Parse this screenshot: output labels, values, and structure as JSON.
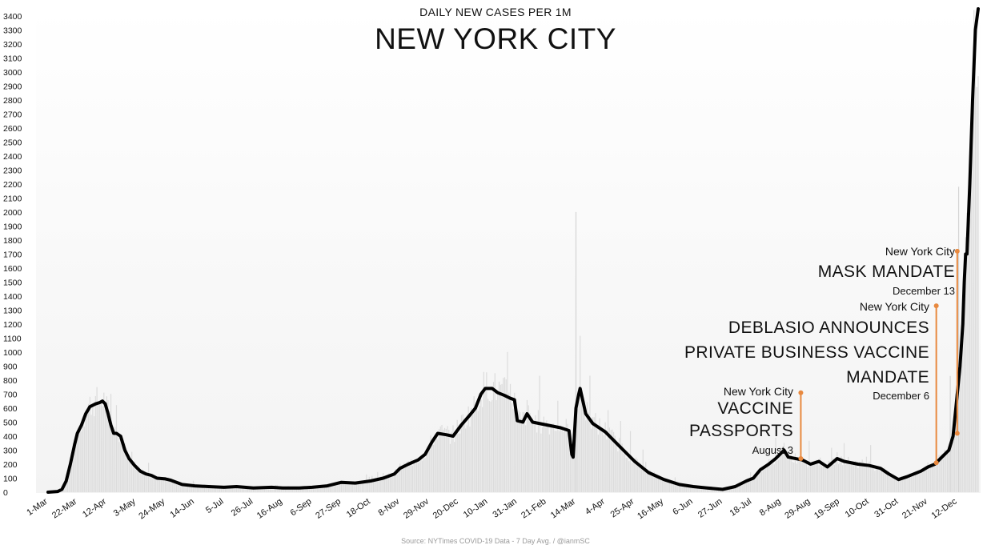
{
  "chart_data": {
    "type": "line",
    "subtitle": "DAILY NEW CASES PER 1M",
    "title": "NEW YORK CITY",
    "source": "Source: NYTimes COVID-19 Data - 7 Day Avg. / @ianmSC",
    "ylim": [
      0,
      3450
    ],
    "yticks": [
      0,
      100,
      200,
      300,
      400,
      500,
      600,
      700,
      800,
      900,
      1000,
      1100,
      1200,
      1300,
      1400,
      1500,
      1600,
      1700,
      1800,
      1900,
      2000,
      2100,
      2200,
      2300,
      2400,
      2500,
      2600,
      2700,
      2800,
      2900,
      3000,
      3100,
      3200,
      3300,
      3400
    ],
    "x_tick_labels": [
      "1-Mar",
      "22-Mar",
      "12-Apr",
      "3-May",
      "24-May",
      "14-Jun",
      "5-Jul",
      "26-Jul",
      "16-Aug",
      "6-Sep",
      "27-Sep",
      "18-Oct",
      "8-Nov",
      "29-Nov",
      "20-Dec",
      "10-Jan",
      "31-Jan",
      "21-Feb",
      "14-Mar",
      "4-Apr",
      "25-Apr",
      "16-May",
      "6-Jun",
      "27-Jun",
      "18-Jul",
      "8-Aug",
      "29-Aug",
      "19-Sep",
      "10-Oct",
      "31-Oct",
      "21-Nov",
      "12-Dec"
    ],
    "x_tick_day_offsets": [
      0,
      21,
      42,
      63,
      84,
      105,
      126,
      147,
      168,
      189,
      210,
      231,
      252,
      273,
      294,
      315,
      336,
      357,
      378,
      399,
      420,
      441,
      462,
      483,
      504,
      525,
      546,
      567,
      588,
      609,
      630,
      651
    ],
    "x_range_days": [
      0,
      666
    ],
    "grid": false,
    "series": [
      {
        "name": "",
        "color": "#000000",
        "points": [
          [
            0,
            0
          ],
          [
            7,
            5
          ],
          [
            10,
            20
          ],
          [
            13,
            80
          ],
          [
            16,
            200
          ],
          [
            19,
            340
          ],
          [
            21,
            420
          ],
          [
            24,
            480
          ],
          [
            27,
            560
          ],
          [
            30,
            610
          ],
          [
            34,
            630
          ],
          [
            37,
            640
          ],
          [
            39,
            650
          ],
          [
            41,
            630
          ],
          [
            43,
            560
          ],
          [
            45,
            480
          ],
          [
            47,
            420
          ],
          [
            49,
            420
          ],
          [
            52,
            400
          ],
          [
            55,
            300
          ],
          [
            58,
            240
          ],
          [
            62,
            190
          ],
          [
            66,
            150
          ],
          [
            70,
            130
          ],
          [
            74,
            120
          ],
          [
            78,
            100
          ],
          [
            84,
            95
          ],
          [
            88,
            85
          ],
          [
            92,
            70
          ],
          [
            96,
            55
          ],
          [
            105,
            45
          ],
          [
            115,
            40
          ],
          [
            126,
            35
          ],
          [
            135,
            40
          ],
          [
            147,
            30
          ],
          [
            160,
            35
          ],
          [
            168,
            30
          ],
          [
            180,
            30
          ],
          [
            189,
            35
          ],
          [
            200,
            45
          ],
          [
            210,
            70
          ],
          [
            220,
            65
          ],
          [
            231,
            80
          ],
          [
            240,
            100
          ],
          [
            248,
            130
          ],
          [
            252,
            170
          ],
          [
            258,
            200
          ],
          [
            265,
            230
          ],
          [
            270,
            270
          ],
          [
            275,
            360
          ],
          [
            279,
            420
          ],
          [
            285,
            410
          ],
          [
            290,
            400
          ],
          [
            296,
            480
          ],
          [
            302,
            550
          ],
          [
            306,
            600
          ],
          [
            310,
            700
          ],
          [
            313,
            740
          ],
          [
            318,
            740
          ],
          [
            322,
            710
          ],
          [
            327,
            690
          ],
          [
            331,
            670
          ],
          [
            334,
            660
          ],
          [
            336,
            510
          ],
          [
            340,
            500
          ],
          [
            343,
            560
          ],
          [
            347,
            500
          ],
          [
            357,
            480
          ],
          [
            367,
            460
          ],
          [
            373,
            440
          ],
          [
            375,
            270
          ],
          [
            376,
            250
          ],
          [
            378,
            600
          ],
          [
            380,
            700
          ],
          [
            381,
            740
          ],
          [
            383,
            650
          ],
          [
            385,
            560
          ],
          [
            390,
            490
          ],
          [
            399,
            430
          ],
          [
            410,
            320
          ],
          [
            420,
            220
          ],
          [
            430,
            140
          ],
          [
            441,
            90
          ],
          [
            452,
            55
          ],
          [
            462,
            40
          ],
          [
            472,
            30
          ],
          [
            483,
            20
          ],
          [
            492,
            40
          ],
          [
            500,
            80
          ],
          [
            505,
            100
          ],
          [
            510,
            160
          ],
          [
            516,
            200
          ],
          [
            521,
            240
          ],
          [
            525,
            280
          ],
          [
            527,
            300
          ],
          [
            530,
            250
          ],
          [
            540,
            230
          ],
          [
            546,
            200
          ],
          [
            552,
            220
          ],
          [
            558,
            180
          ],
          [
            565,
            240
          ],
          [
            570,
            220
          ],
          [
            580,
            200
          ],
          [
            588,
            190
          ],
          [
            596,
            170
          ],
          [
            602,
            130
          ],
          [
            609,
            90
          ],
          [
            615,
            110
          ],
          [
            620,
            130
          ],
          [
            625,
            150
          ],
          [
            630,
            180
          ],
          [
            635,
            200
          ],
          [
            640,
            250
          ],
          [
            645,
            300
          ],
          [
            648,
            400
          ],
          [
            650,
            600
          ],
          [
            653,
            900
          ],
          [
            655,
            1200
          ],
          [
            656,
            1500
          ],
          [
            657,
            1700
          ],
          [
            658,
            1700
          ],
          [
            660,
            2200
          ],
          [
            662,
            2800
          ],
          [
            664,
            3300
          ],
          [
            666,
            3450
          ]
        ]
      }
    ],
    "bars_note": "light grey daily-value bars behind line",
    "annotations": [
      {
        "top": "New York City",
        "lines": [
          "VACCINE",
          "PASSPORTS"
        ],
        "date": "August 3",
        "color": "#e8893f",
        "day": 539,
        "y_top": 710,
        "y_bottom": 240
      },
      {
        "top": "New York City",
        "lines": [
          "DEBLASIO ANNOUNCES",
          "PRIVATE BUSINESS VACCINE",
          "MANDATE"
        ],
        "date": "December 6",
        "color": "#e8893f",
        "day": 636,
        "y_top": 1330,
        "y_bottom": 210
      },
      {
        "top": "New York City",
        "lines": [
          "MASK MANDATE"
        ],
        "date": "December 13",
        "color": "#e8893f",
        "day": 651,
        "y_top": 1720,
        "y_bottom": 420
      }
    ]
  }
}
